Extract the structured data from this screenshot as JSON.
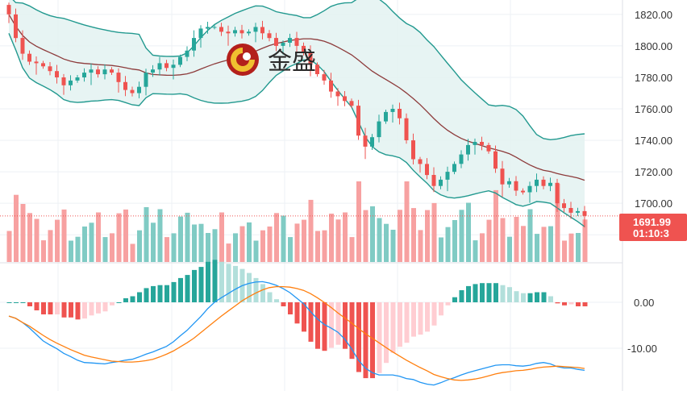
{
  "watermark": {
    "text": "金盛"
  },
  "colors": {
    "up": "#26a69a",
    "down": "#ef5350",
    "vol_up": "#80cbc4",
    "vol_down": "#f7a1a1",
    "ma": "#8d3b3b",
    "band": "#22998f",
    "band_fill": "#e3f2f1",
    "macd_line": "#2196f3",
    "signal_line": "#ff7f0e",
    "hist_up_strong": "#26a69a",
    "hist_up_weak": "#b2dfdb",
    "hist_down_strong": "#ef5350",
    "hist_down_weak": "#ffcdd2",
    "price_tag": "#ef5350",
    "axis_text": "#333333",
    "grid": "#eef1f5"
  },
  "price_tag": {
    "price": "1691.99",
    "countdown": "01:10:3"
  },
  "chart_data": [
    {
      "type": "candlestick",
      "y_ticks": [
        "1820.00",
        "1800.00",
        "1780.00",
        "1760.00",
        "1740.00",
        "1720.00",
        "1700.00",
        "1680.00"
      ],
      "ylim": [
        1675,
        1823
      ],
      "current_price": 1691.99,
      "indicators": [
        "Bollinger Bands (upper, middle, lower)",
        "Volume"
      ],
      "closes": [
        1820,
        1805,
        1795,
        1790,
        1789,
        1787,
        1784,
        1780,
        1775,
        1778,
        1780,
        1783,
        1785,
        1782,
        1785,
        1783,
        1777,
        1772,
        1770,
        1774,
        1783,
        1785,
        1789,
        1786,
        1788,
        1793,
        1797,
        1805,
        1811,
        1812,
        1812,
        1809,
        1808,
        1810,
        1808,
        1809,
        1812,
        1808,
        1805,
        1800,
        1802,
        1805,
        1800,
        1796,
        1788,
        1782,
        1778,
        1771,
        1768,
        1765,
        1762,
        1743,
        1736,
        1742,
        1752,
        1758,
        1760,
        1754,
        1740,
        1728,
        1725,
        1718,
        1711,
        1715,
        1720,
        1725,
        1731,
        1737,
        1739,
        1737,
        1733,
        1722,
        1712,
        1714,
        1708,
        1707,
        1711,
        1715,
        1711,
        1713,
        1700,
        1697,
        1694,
        1695,
        1692
      ],
      "volume_scale": [
        0,
        55
      ]
    },
    {
      "type": "macd",
      "y_ticks": [
        "0.00",
        "-10.00"
      ],
      "ylim": [
        -19,
        7
      ],
      "series": [
        {
          "role": "macd_line",
          "values": [
            -3,
            -3.5,
            -4.4,
            -5.6,
            -7,
            -8.4,
            -9.3,
            -10.1,
            -11.1,
            -11.8,
            -12.6,
            -13.1,
            -13.2,
            -13.3,
            -13.4,
            -13.1,
            -12.9,
            -12.6,
            -12.4,
            -11.9,
            -11.3,
            -10.8,
            -10.2,
            -9.6,
            -8.6,
            -7.3,
            -6.1,
            -4.6,
            -3.1,
            -1.4,
            0,
            1,
            1.9,
            2.8,
            3.6,
            4.1,
            4.4,
            4.5,
            4.2,
            3.7,
            3,
            2.1,
            0.9,
            -0.3,
            -2,
            -3.6,
            -4.8,
            -5.6,
            -6.5,
            -8,
            -10.1,
            -12.6,
            -14.3,
            -15.3,
            -15.8,
            -15.8,
            -15.8,
            -16.1,
            -16.6,
            -16.8,
            -17.4,
            -17.8,
            -18,
            -17.5,
            -16.9,
            -16.4,
            -15.8,
            -15.3,
            -14.9,
            -14.5,
            -14.1,
            -13.7,
            -13.6,
            -13.6,
            -13.8,
            -13.9,
            -13.7,
            -13.3,
            -13.1,
            -13.4,
            -14,
            -14.3,
            -14.3,
            -14.6,
            -14.8
          ]
        },
        {
          "role": "signal_line",
          "values": [
            -3,
            -3.5,
            -4.4,
            -5.2,
            -6.2,
            -7.2,
            -8.1,
            -8.9,
            -9.6,
            -10.3,
            -10.9,
            -11.5,
            -11.9,
            -12.2,
            -12.5,
            -12.8,
            -12.9,
            -13,
            -13,
            -12.9,
            -12.7,
            -12.4,
            -11.9,
            -11.3,
            -10.6,
            -9.7,
            -8.8,
            -7.8,
            -6.6,
            -5.4,
            -4.2,
            -3,
            -1.9,
            -0.8,
            0.3,
            1.2,
            2,
            2.7,
            3.2,
            3.4,
            3.4,
            3.3,
            3,
            2.6,
            1.9,
            1,
            0,
            -1.1,
            -2.3,
            -3.4,
            -4.5,
            -5.7,
            -6.8,
            -7.8,
            -8.8,
            -9.8,
            -10.8,
            -11.7,
            -12.6,
            -13.4,
            -14.2,
            -14.9,
            -15.7,
            -16.2,
            -16.6,
            -16.9,
            -17,
            -16.9,
            -16.7,
            -16.4,
            -16,
            -15.6,
            -15.3,
            -15.1,
            -14.9,
            -14.8,
            -14.6,
            -14.3,
            -14.1,
            -14,
            -13.9,
            -14,
            -14.1,
            -14.2,
            -14.4
          ]
        }
      ]
    }
  ]
}
